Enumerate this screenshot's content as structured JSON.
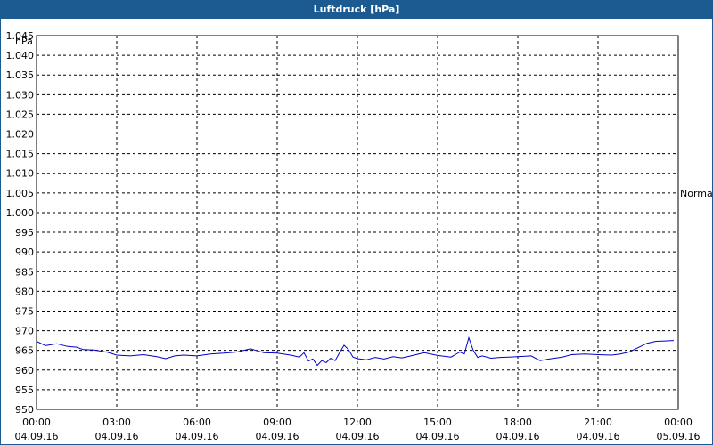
{
  "window": {
    "title": "Luftdruck [hPa]"
  },
  "chart_data": {
    "type": "line",
    "title": "Luftdruck [hPa]",
    "ylabel": "hPa",
    "ylim": [
      950,
      1045
    ],
    "yticks": [
      950,
      955,
      960,
      965,
      970,
      975,
      980,
      985,
      990,
      995,
      1000,
      1005,
      1010,
      1015,
      1020,
      1025,
      1030,
      1035,
      1040,
      1045
    ],
    "ytick_labels": [
      "950",
      "955",
      "960",
      "965",
      "970",
      "975",
      "980",
      "985",
      "990",
      "995",
      "1.000",
      "1.005",
      "1.010",
      "1.015",
      "1.020",
      "1.025",
      "1.030",
      "1.035",
      "1.040",
      "1.045"
    ],
    "xlim": [
      "04.09.16 00:00",
      "05.09.16 00:00"
    ],
    "xticks": [
      {
        "time": "00:00",
        "date": "04.09.16"
      },
      {
        "time": "03:00",
        "date": "04.09.16"
      },
      {
        "time": "06:00",
        "date": "04.09.16"
      },
      {
        "time": "09:00",
        "date": "04.09.16"
      },
      {
        "time": "12:00",
        "date": "04.09.16"
      },
      {
        "time": "15:00",
        "date": "04.09.16"
      },
      {
        "time": "18:00",
        "date": "04.09.16"
      },
      {
        "time": "21:00",
        "date": "04.09.16"
      },
      {
        "time": "00:00",
        "date": "05.09.16"
      }
    ],
    "grid": true,
    "reference_line": {
      "label": "Normal",
      "value": 1005
    },
    "series": [
      {
        "color": "#0000cc",
        "x": [
          "04.09.16 00:00",
          "04.09.16 00:20",
          "04.09.16 00:45",
          "04.09.16 01:10",
          "04.09.16 01:30",
          "04.09.16 01:45",
          "04.09.16 02:10",
          "04.09.16 02:40",
          "04.09.16 03:00",
          "04.09.16 03:30",
          "04.09.16 04:00",
          "04.09.16 04:30",
          "04.09.16 04:50",
          "04.09.16 05:10",
          "04.09.16 05:30",
          "04.09.16 06:00",
          "04.09.16 06:30",
          "04.09.16 07:00",
          "04.09.16 07:30",
          "04.09.16 08:00",
          "04.09.16 08:30",
          "04.09.16 09:00",
          "04.09.16 09:30",
          "04.09.16 09:50",
          "04.09.16 10:00",
          "04.09.16 10:10",
          "04.09.16 10:20",
          "04.09.16 10:30",
          "04.09.16 10:40",
          "04.09.16 10:50",
          "04.09.16 11:00",
          "04.09.16 11:10",
          "04.09.16 11:20",
          "04.09.16 11:30",
          "04.09.16 11:40",
          "04.09.16 11:50",
          "04.09.16 12:00",
          "04.09.16 12:20",
          "04.09.16 12:40",
          "04.09.16 13:00",
          "04.09.16 13:20",
          "04.09.16 13:40",
          "04.09.16 14:00",
          "04.09.16 14:30",
          "04.09.16 15:00",
          "04.09.16 15:30",
          "04.09.16 15:50",
          "04.09.16 16:00",
          "04.09.16 16:10",
          "04.09.16 16:20",
          "04.09.16 16:30",
          "04.09.16 16:40",
          "04.09.16 17:00",
          "04.09.16 17:20",
          "04.09.16 17:40",
          "04.09.16 18:00",
          "04.09.16 18:30",
          "04.09.16 18:50",
          "04.09.16 19:10",
          "04.09.16 19:40",
          "04.09.16 20:00",
          "04.09.16 20:30",
          "04.09.16 21:00",
          "04.09.16 21:30",
          "04.09.16 21:50",
          "04.09.16 22:10",
          "04.09.16 22:30",
          "04.09.16 22:50",
          "04.09.16 23:10",
          "04.09.16 23:30",
          "04.09.16 23:50"
        ],
        "values": [
          967.3,
          966.2,
          966.7,
          966.0,
          965.8,
          965.2,
          965.1,
          964.5,
          963.8,
          963.6,
          963.9,
          963.4,
          962.9,
          963.6,
          963.8,
          963.6,
          964.1,
          964.3,
          964.6,
          965.4,
          964.4,
          964.3,
          963.8,
          963.3,
          964.4,
          962.3,
          962.8,
          961.2,
          962.4,
          961.9,
          963.0,
          962.4,
          964.4,
          966.3,
          965.2,
          963.3,
          962.9,
          962.6,
          963.2,
          962.8,
          963.4,
          963.1,
          963.6,
          964.4,
          963.7,
          963.3,
          964.6,
          964.1,
          968.2,
          965.0,
          963.2,
          963.6,
          963.0,
          963.2,
          963.3,
          963.4,
          963.6,
          962.4,
          962.8,
          963.3,
          963.9,
          964.1,
          963.9,
          963.8,
          964.1,
          964.6,
          965.7,
          966.8,
          967.3,
          967.4,
          967.5
        ]
      }
    ]
  }
}
